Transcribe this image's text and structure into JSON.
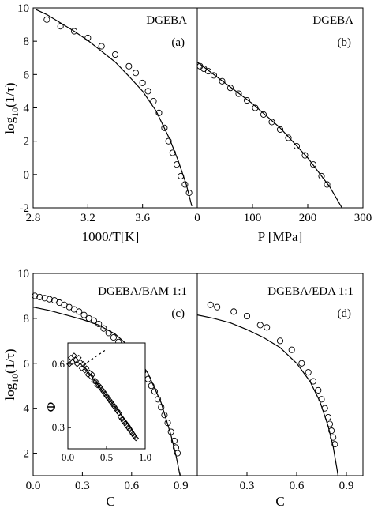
{
  "chart_data": [
    {
      "id": "a",
      "type": "scatter",
      "panel_label": "(a)",
      "sample_label": "DGEBA",
      "xlabel": "1000/T[K]",
      "ylabel": "log10(1/τ)",
      "xlim": [
        2.8,
        4.0
      ],
      "ylim": [
        -2,
        10
      ],
      "xticks": [
        "2.8",
        "3.2",
        "3.6"
      ],
      "yticks": [
        "-2",
        "0",
        "2",
        "4",
        "6",
        "8",
        "10"
      ],
      "series": [
        {
          "kind": "points",
          "marker": "circle",
          "x": [
            2.9,
            3.0,
            3.1,
            3.2,
            3.3,
            3.4,
            3.5,
            3.55,
            3.6,
            3.64,
            3.68,
            3.72,
            3.76,
            3.79,
            3.82,
            3.85,
            3.88,
            3.91,
            3.94
          ],
          "y": [
            9.3,
            8.9,
            8.6,
            8.2,
            7.7,
            7.2,
            6.5,
            6.1,
            5.5,
            5.0,
            4.4,
            3.7,
            2.8,
            2.0,
            1.3,
            0.6,
            -0.1,
            -0.6,
            -1.1
          ]
        },
        {
          "kind": "curve",
          "x": [
            2.82,
            2.9,
            3.0,
            3.1,
            3.2,
            3.3,
            3.4,
            3.5,
            3.6,
            3.7,
            3.8,
            3.86,
            3.92,
            3.96
          ],
          "y": [
            9.9,
            9.6,
            9.1,
            8.6,
            8.05,
            7.4,
            6.75,
            5.9,
            5.0,
            3.8,
            2.1,
            0.85,
            -0.6,
            -1.9
          ]
        }
      ]
    },
    {
      "id": "b",
      "type": "scatter",
      "panel_label": "(b)",
      "sample_label": "DGEBA",
      "xlabel": "P [MPa]",
      "xlim": [
        0,
        300
      ],
      "ylim": [
        -2,
        10
      ],
      "xticks": [
        "0",
        "100",
        "200",
        "300"
      ],
      "series": [
        {
          "kind": "points",
          "marker": "circle",
          "x": [
            5,
            12,
            20,
            30,
            45,
            60,
            75,
            90,
            105,
            120,
            135,
            150,
            165,
            180,
            195,
            210,
            225,
            235
          ],
          "y": [
            6.5,
            6.35,
            6.2,
            5.95,
            5.6,
            5.2,
            4.85,
            4.45,
            4.0,
            3.6,
            3.15,
            2.7,
            2.2,
            1.7,
            1.15,
            0.6,
            -0.1,
            -0.6
          ]
        },
        {
          "kind": "curve",
          "x": [
            0,
            50,
            100,
            150,
            200,
            240,
            262
          ],
          "y": [
            6.75,
            5.5,
            4.25,
            2.8,
            1.0,
            -0.75,
            -2.0
          ]
        }
      ]
    },
    {
      "id": "c",
      "type": "scatter",
      "panel_label": "(c)",
      "sample_label": "DGEBA/BAM 1:1",
      "xlabel": "C",
      "ylabel": "log10(1/τ)",
      "xlim": [
        0.0,
        1.0
      ],
      "ylim": [
        1,
        10
      ],
      "xticks": [
        "0.0",
        "0.3",
        "0.6",
        "0.9"
      ],
      "yticks": [
        "2",
        "4",
        "6",
        "8",
        "10"
      ],
      "series": [
        {
          "kind": "points",
          "marker": "circle",
          "x": [
            0.01,
            0.04,
            0.07,
            0.1,
            0.13,
            0.16,
            0.19,
            0.22,
            0.25,
            0.28,
            0.31,
            0.34,
            0.37,
            0.4,
            0.43,
            0.46,
            0.49,
            0.52,
            0.55,
            0.58,
            0.61,
            0.64,
            0.67,
            0.7,
            0.72,
            0.74,
            0.76,
            0.78,
            0.8,
            0.82,
            0.84,
            0.86,
            0.87,
            0.88
          ],
          "y": [
            9.0,
            8.95,
            8.9,
            8.85,
            8.8,
            8.7,
            8.6,
            8.5,
            8.4,
            8.3,
            8.15,
            8.0,
            7.9,
            7.75,
            7.55,
            7.35,
            7.15,
            6.95,
            6.7,
            6.45,
            6.2,
            5.95,
            5.65,
            5.3,
            5.0,
            4.75,
            4.4,
            4.05,
            3.7,
            3.35,
            2.95,
            2.55,
            2.25,
            2.0
          ]
        },
        {
          "kind": "curve",
          "x": [
            0.0,
            0.1,
            0.2,
            0.3,
            0.4,
            0.5,
            0.6,
            0.7,
            0.78,
            0.84,
            0.87,
            0.895
          ],
          "y": [
            8.5,
            8.35,
            8.15,
            7.95,
            7.7,
            7.3,
            6.65,
            5.55,
            4.25,
            2.8,
            1.9,
            1.0
          ]
        }
      ],
      "inset": {
        "ylabel": "Φ",
        "xlim": [
          0.0,
          1.0
        ],
        "ylim": [
          0.2,
          0.7
        ],
        "xticks": [
          "0.0",
          "0.5",
          "1.0"
        ],
        "yticks": [
          "0.3",
          "0.6"
        ],
        "series": [
          {
            "kind": "points",
            "marker": "diamond",
            "x": [
              0.02,
              0.04,
              0.06,
              0.08,
              0.1,
              0.12,
              0.14,
              0.16,
              0.18,
              0.2,
              0.22,
              0.24,
              0.26,
              0.28,
              0.3,
              0.32,
              0.34,
              0.36,
              0.38,
              0.4,
              0.42,
              0.44,
              0.46,
              0.48,
              0.5,
              0.52,
              0.54,
              0.56,
              0.58,
              0.6,
              0.62,
              0.64,
              0.66,
              0.68,
              0.7,
              0.72,
              0.74,
              0.76,
              0.78,
              0.8,
              0.82,
              0.84,
              0.86,
              0.88
            ],
            "y": [
              0.6,
              0.63,
              0.61,
              0.64,
              0.62,
              0.6,
              0.63,
              0.61,
              0.58,
              0.6,
              0.57,
              0.58,
              0.55,
              0.56,
              0.54,
              0.55,
              0.52,
              0.52,
              0.5,
              0.5,
              0.49,
              0.48,
              0.47,
              0.46,
              0.45,
              0.44,
              0.43,
              0.42,
              0.41,
              0.4,
              0.39,
              0.38,
              0.37,
              0.35,
              0.34,
              0.33,
              0.32,
              0.31,
              0.3,
              0.29,
              0.28,
              0.27,
              0.26,
              0.25
            ]
          },
          {
            "kind": "curve",
            "x": [
              0.2,
              0.35,
              0.5,
              0.65,
              0.8,
              0.9
            ],
            "y": [
              0.595,
              0.52,
              0.45,
              0.38,
              0.31,
              0.25
            ]
          },
          {
            "kind": "dashed",
            "x": [
              0.2,
              0.5
            ],
            "y": [
              0.595,
              0.67
            ]
          }
        ]
      }
    },
    {
      "id": "d",
      "type": "scatter",
      "panel_label": "(d)",
      "sample_label": "DGEBA/EDA 1:1",
      "xlabel": "C",
      "xlim": [
        0.0,
        1.0
      ],
      "ylim": [
        1,
        10
      ],
      "xticks": [
        "0.3",
        "0.6",
        "0.9"
      ],
      "series": [
        {
          "kind": "points",
          "marker": "circle",
          "x": [
            0.08,
            0.12,
            0.22,
            0.3,
            0.38,
            0.42,
            0.5,
            0.57,
            0.63,
            0.67,
            0.7,
            0.73,
            0.75,
            0.77,
            0.79,
            0.8,
            0.81,
            0.82,
            0.83
          ],
          "y": [
            8.6,
            8.5,
            8.3,
            8.1,
            7.7,
            7.6,
            7.0,
            6.6,
            6.0,
            5.6,
            5.2,
            4.8,
            4.4,
            4.0,
            3.6,
            3.3,
            3.0,
            2.7,
            2.4
          ]
        },
        {
          "kind": "curve",
          "x": [
            0.0,
            0.1,
            0.2,
            0.3,
            0.4,
            0.5,
            0.6,
            0.68,
            0.74,
            0.79,
            0.82,
            0.85
          ],
          "y": [
            8.15,
            8.0,
            7.8,
            7.5,
            7.15,
            6.7,
            6.0,
            5.2,
            4.3,
            3.2,
            2.3,
            1.0
          ]
        }
      ]
    }
  ]
}
